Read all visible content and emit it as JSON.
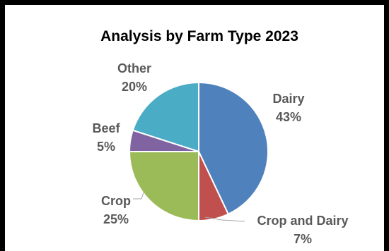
{
  "chart_data": {
    "type": "pie",
    "title": "Analysis by Farm Type 2023",
    "unit": "%",
    "slices": [
      {
        "name": "Dairy",
        "value": 43,
        "label": "43%",
        "color": "#4f81bd"
      },
      {
        "name": "Crop and Dairy",
        "value": 7,
        "label": "7%",
        "color": "#c0504d"
      },
      {
        "name": "Crop",
        "value": 25,
        "label": "25%",
        "color": "#9bbb59"
      },
      {
        "name": "Beef",
        "value": 5,
        "label": "5%",
        "color": "#8064a2"
      },
      {
        "name": "Other",
        "value": 20,
        "label": "20%",
        "color": "#4bacc6"
      }
    ]
  }
}
